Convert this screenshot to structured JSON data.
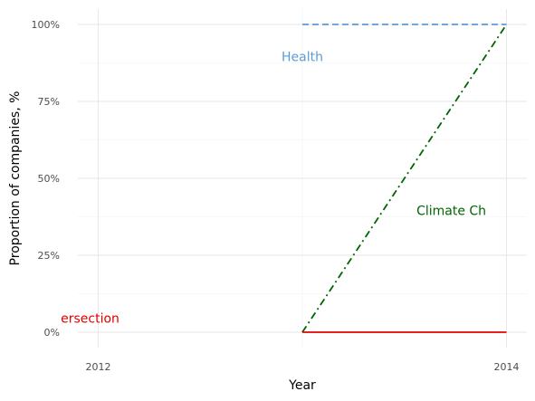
{
  "chart_data": {
    "type": "line",
    "xlabel": "Year",
    "ylabel": "Proportion of companies, %",
    "xlim": [
      2011.9,
      2014.1
    ],
    "ylim": [
      -0.05,
      1.05
    ],
    "x_ticks": [
      {
        "value": 2012,
        "label": "2012"
      },
      {
        "value": 2014,
        "label": "2014"
      }
    ],
    "y_ticks": [
      {
        "value": 0,
        "label": "0%"
      },
      {
        "value": 0.25,
        "label": "25%"
      },
      {
        "value": 0.5,
        "label": "50%"
      },
      {
        "value": 0.75,
        "label": "75%"
      },
      {
        "value": 1,
        "label": "100%"
      }
    ],
    "grid": true,
    "legend": "none",
    "series": [
      {
        "name": "Health",
        "color": "#5b9bd5",
        "dash": "dashed",
        "x": [
          2013,
          2014
        ],
        "y": [
          1.0,
          1.0
        ],
        "label_at": {
          "x": 2013,
          "y": 0.895
        }
      },
      {
        "name": "Climate Ch",
        "color": "#006400",
        "dash": "dashdot",
        "x": [
          2013,
          2014
        ],
        "y": [
          0.0,
          1.0
        ],
        "label_at": {
          "x": 2013.73,
          "y": 0.395
        }
      },
      {
        "name": "ersection",
        "color": "#e00000",
        "dash": "solid",
        "x": [
          2013,
          2014
        ],
        "y": [
          0.0,
          0.0
        ],
        "label_at": {
          "x": 2011.96,
          "y": 0.045
        }
      }
    ]
  }
}
